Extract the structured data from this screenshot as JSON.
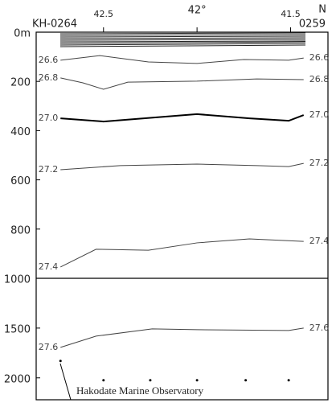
{
  "chart_data": {
    "type": "contour",
    "x_label": "N",
    "station_labels": [
      "KH-0264",
      "0259"
    ],
    "xlim": [
      42.86,
      41.3
    ],
    "xticks": [
      42.5,
      {
        "value": 42,
        "label": "42°"
      },
      41.5
    ],
    "ylim": [
      0,
      2220
    ],
    "y_break": 1000,
    "yticks": [
      {
        "value": 0,
        "label": "0m"
      },
      200,
      400,
      600,
      800,
      1000,
      1500,
      2000
    ],
    "series": [
      {
        "name": "26.6",
        "color": "#444444",
        "width": 1,
        "x": [
          42.73,
          42.52,
          42.26,
          42.0,
          41.75,
          41.51,
          41.43
        ],
        "values": [
          114,
          95,
          121,
          127,
          111,
          114,
          105
        ]
      },
      {
        "name": "26.8",
        "color": "#444444",
        "width": 1,
        "x": [
          42.73,
          42.61,
          42.5,
          42.37,
          42.0,
          41.68,
          41.43
        ],
        "values": [
          186,
          206,
          232,
          203,
          199,
          190,
          193
        ]
      },
      {
        "name": "27.0",
        "color": "#000000",
        "width": 2,
        "x": [
          42.73,
          42.5,
          42.0,
          41.72,
          41.51,
          41.43
        ],
        "values": [
          350,
          363,
          333,
          350,
          360,
          337
        ]
      },
      {
        "name": "27.2",
        "color": "#444444",
        "width": 1,
        "x": [
          42.73,
          42.41,
          42.0,
          41.68,
          41.51,
          41.43
        ],
        "values": [
          559,
          542,
          536,
          542,
          546,
          533
        ]
      },
      {
        "name": "27.4",
        "color": "#444444",
        "width": 1,
        "x": [
          42.73,
          42.54,
          42.26,
          42.0,
          41.72,
          41.43
        ],
        "values": [
          954,
          882,
          886,
          856,
          840,
          850
        ]
      },
      {
        "name": "27.6",
        "color": "#444444",
        "width": 1,
        "x": [
          42.73,
          42.54,
          42.24,
          42.0,
          41.51,
          41.43
        ],
        "values": [
          1694,
          1581,
          1508,
          1516,
          1524,
          1500
        ]
      }
    ],
    "bottom_points": {
      "x": [
        42.73,
        42.5,
        42.25,
        42.0,
        41.74,
        41.51
      ],
      "values": [
        1830,
        2024,
        2024,
        2024,
        2024,
        2024
      ]
    },
    "annotation": "Hakodate Marine Observatory"
  }
}
